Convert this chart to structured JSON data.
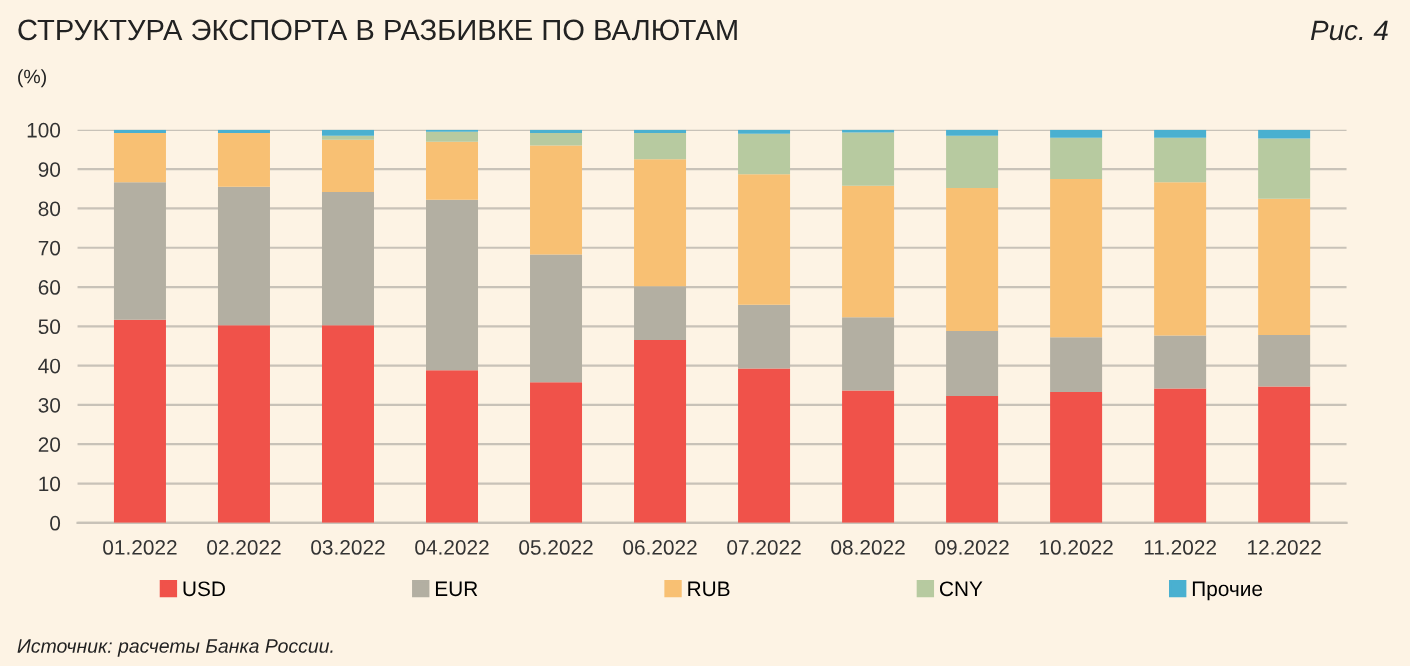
{
  "chart_data": {
    "type": "bar",
    "stacked": true,
    "title": "СТРУКТУРА ЭКСПОРТА В РАЗБИВКЕ ПО ВАЛЮТАМ",
    "subtitle": "(%)",
    "annotations": [
      "Рис. 4",
      "Источник: расчеты Банка России."
    ],
    "categories": [
      "01.2022",
      "02.2022",
      "03.2022",
      "04.2022",
      "05.2022",
      "06.2022",
      "07.2022",
      "08.2022",
      "09.2022",
      "10.2022",
      "11.2022",
      "12.2022"
    ],
    "series": [
      {
        "name": "USD",
        "color": "#f0524a",
        "values": [
          51.7,
          50.3,
          50.3,
          38.8,
          35.8,
          46.5,
          39.3,
          33.7,
          32.3,
          33.3,
          34.2,
          34.7
        ]
      },
      {
        "name": "EUR",
        "color": "#b3afa2",
        "values": [
          35.0,
          35.2,
          33.9,
          43.4,
          32.5,
          13.7,
          16.2,
          18.6,
          16.5,
          13.9,
          13.5,
          13.1
        ]
      },
      {
        "name": "RUB",
        "color": "#f8c073",
        "values": [
          12.5,
          13.7,
          13.3,
          14.8,
          27.7,
          32.3,
          33.2,
          33.5,
          36.4,
          40.3,
          39.0,
          34.7
        ]
      },
      {
        "name": "CNY",
        "color": "#b7caa0",
        "values": [
          0,
          0,
          1.0,
          2.5,
          3.2,
          6.7,
          10.3,
          13.5,
          13.3,
          10.5,
          11.3,
          15.3
        ]
      },
      {
        "name": "Прочие",
        "color": "#4ab0d0",
        "values": [
          0.8,
          0.8,
          1.5,
          0.5,
          0.8,
          0.8,
          1.0,
          0.7,
          1.5,
          2.0,
          2.0,
          2.2
        ]
      }
    ],
    "ylim": [
      0,
      100
    ],
    "yticks": [
      0,
      10,
      20,
      30,
      40,
      50,
      60,
      70,
      80,
      90,
      100
    ],
    "grid": "y",
    "legend": "bottom"
  }
}
